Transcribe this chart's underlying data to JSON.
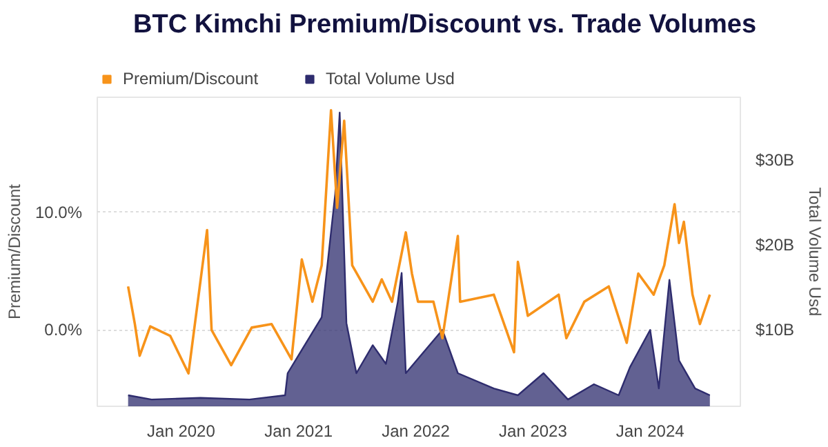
{
  "chart_data": {
    "type": "line",
    "title": "BTC Kimchi Premium/Discount vs. Trade Volumes",
    "ylabel": "Premium/Discount",
    "y2label": "Total Volume Usd",
    "xlim": [
      "2019-04-15",
      "2024-10-08"
    ],
    "xticks": [
      {
        "value": "2020-01-01",
        "label": "Jan 2020"
      },
      {
        "value": "2021-01-01",
        "label": "Jan 2021"
      },
      {
        "value": "2022-01-01",
        "label": "Jan 2022"
      },
      {
        "value": "2023-01-01",
        "label": "Jan 2023"
      },
      {
        "value": "2024-01-01",
        "label": "Jan 2024"
      }
    ],
    "ylim": [
      -6.5,
      19.8
    ],
    "yticks": [
      {
        "value": 0,
        "label": "0.0%"
      },
      {
        "value": 10,
        "label": "10.0%"
      }
    ],
    "y2lim": [
      1.0,
      37.4
    ],
    "y2ticks": [
      {
        "value": 10,
        "label": "$10B"
      },
      {
        "value": 20,
        "label": "$20B"
      },
      {
        "value": 30,
        "label": "$30B"
      }
    ],
    "grid": "y",
    "legend": "top left",
    "series": [
      {
        "name": "Total Volume Usd",
        "type": "area",
        "axis": "y2",
        "color": "#2e2c6e",
        "x": [
          "2019-07-20",
          "2019-10-01",
          "2020-03-01",
          "2020-08-01",
          "2020-11-20",
          "2020-11-28",
          "2021-03-14",
          "2021-04-25",
          "2021-05-09",
          "2021-05-30",
          "2021-06-30",
          "2021-08-20",
          "2021-09-30",
          "2021-11-06",
          "2021-11-18",
          "2021-12-01",
          "2022-03-25",
          "2022-05-12",
          "2022-09-01",
          "2022-11-15",
          "2023-02-03",
          "2023-04-20",
          "2023-07-10",
          "2023-09-25",
          "2023-10-30",
          "2024-01-01",
          "2024-01-28",
          "2024-03-01",
          "2024-03-31",
          "2024-05-20",
          "2024-07-05"
        ],
        "values": [
          2.3,
          1.8,
          2.0,
          1.8,
          2.3,
          4.9,
          11.5,
          26,
          35.6,
          10.8,
          4.9,
          8.2,
          6.0,
          13.3,
          16.7,
          4.9,
          10,
          4.9,
          3.1,
          2.3,
          4.9,
          1.8,
          3.6,
          2.3,
          5.6,
          10,
          3.1,
          15.9,
          6.4,
          3.1,
          2.3
        ]
      },
      {
        "name": "Premium/Discount",
        "type": "line",
        "axis": "y",
        "color": "#f7931a",
        "x": [
          "2019-07-20",
          "2019-08-10",
          "2019-08-25",
          "2019-09-27",
          "2019-11-28",
          "2020-01-24",
          "2020-03-22",
          "2020-04-05",
          "2020-06-05",
          "2020-08-08",
          "2020-10-09",
          "2020-12-10",
          "2021-01-11",
          "2021-02-13",
          "2021-03-14",
          "2021-04-12",
          "2021-05-01",
          "2021-05-23",
          "2021-06-17",
          "2021-08-20",
          "2021-09-17",
          "2021-10-19",
          "2021-12-01",
          "2021-12-20",
          "2022-01-08",
          "2022-02-25",
          "2022-03-25",
          "2022-05-12",
          "2022-05-19",
          "2022-09-01",
          "2022-11-03",
          "2022-11-15",
          "2022-12-16",
          "2023-03-22",
          "2023-04-15",
          "2023-06-10",
          "2023-08-25",
          "2023-10-20",
          "2023-11-25",
          "2024-01-12",
          "2024-02-14",
          "2024-03-17",
          "2024-03-31",
          "2024-04-15",
          "2024-05-12",
          "2024-06-04",
          "2024-07-05"
        ],
        "values": [
          3.7,
          0.5,
          -2.2,
          0.3,
          -0.5,
          -3.7,
          8.5,
          0.0,
          -3.0,
          0.2,
          0.5,
          -2.5,
          6.0,
          2.4,
          5.5,
          18.7,
          10.4,
          17.8,
          5.5,
          2.4,
          4.3,
          2.4,
          8.3,
          4.8,
          2.4,
          2.4,
          -0.7,
          8.0,
          2.4,
          3.0,
          -1.9,
          5.8,
          1.2,
          3.0,
          -0.7,
          2.4,
          3.7,
          -1.1,
          4.8,
          3.0,
          5.5,
          10.7,
          7.4,
          9.2,
          3.0,
          0.5,
          3.0
        ]
      }
    ]
  }
}
